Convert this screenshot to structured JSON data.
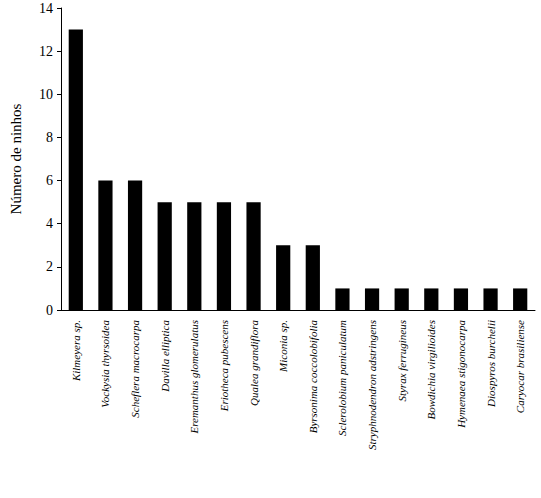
{
  "chart_data": {
    "type": "bar",
    "y_label": "Número de ninhos",
    "categories": [
      "Kilmeyera sp.",
      "Vockysia thyrsoidea",
      "Scheflera macrocarpa",
      "Davilla elliptica",
      "Eremanthus glomerulatus",
      "Eriotheca pubescens",
      "Qualea grandiflora",
      "Miconia sp.",
      "Byrsonima coccolobifolia",
      "Sclerolobium paniculatum",
      "Stryphnodendron adstringens",
      "Styrax ferrugineus",
      "Bowdichia virgilioides",
      "Hymenaea stigonocarpa",
      "Diospyros burchelii",
      "Caryocar brasiliense"
    ],
    "values": [
      13,
      6,
      6,
      5,
      5,
      5,
      5,
      3,
      3,
      1,
      1,
      1,
      1,
      1,
      1,
      1
    ],
    "color": "#000000",
    "ylim": [
      0,
      14
    ],
    "yticks": [
      0,
      2,
      4,
      6,
      8,
      10,
      12,
      14
    ],
    "grid": false
  }
}
